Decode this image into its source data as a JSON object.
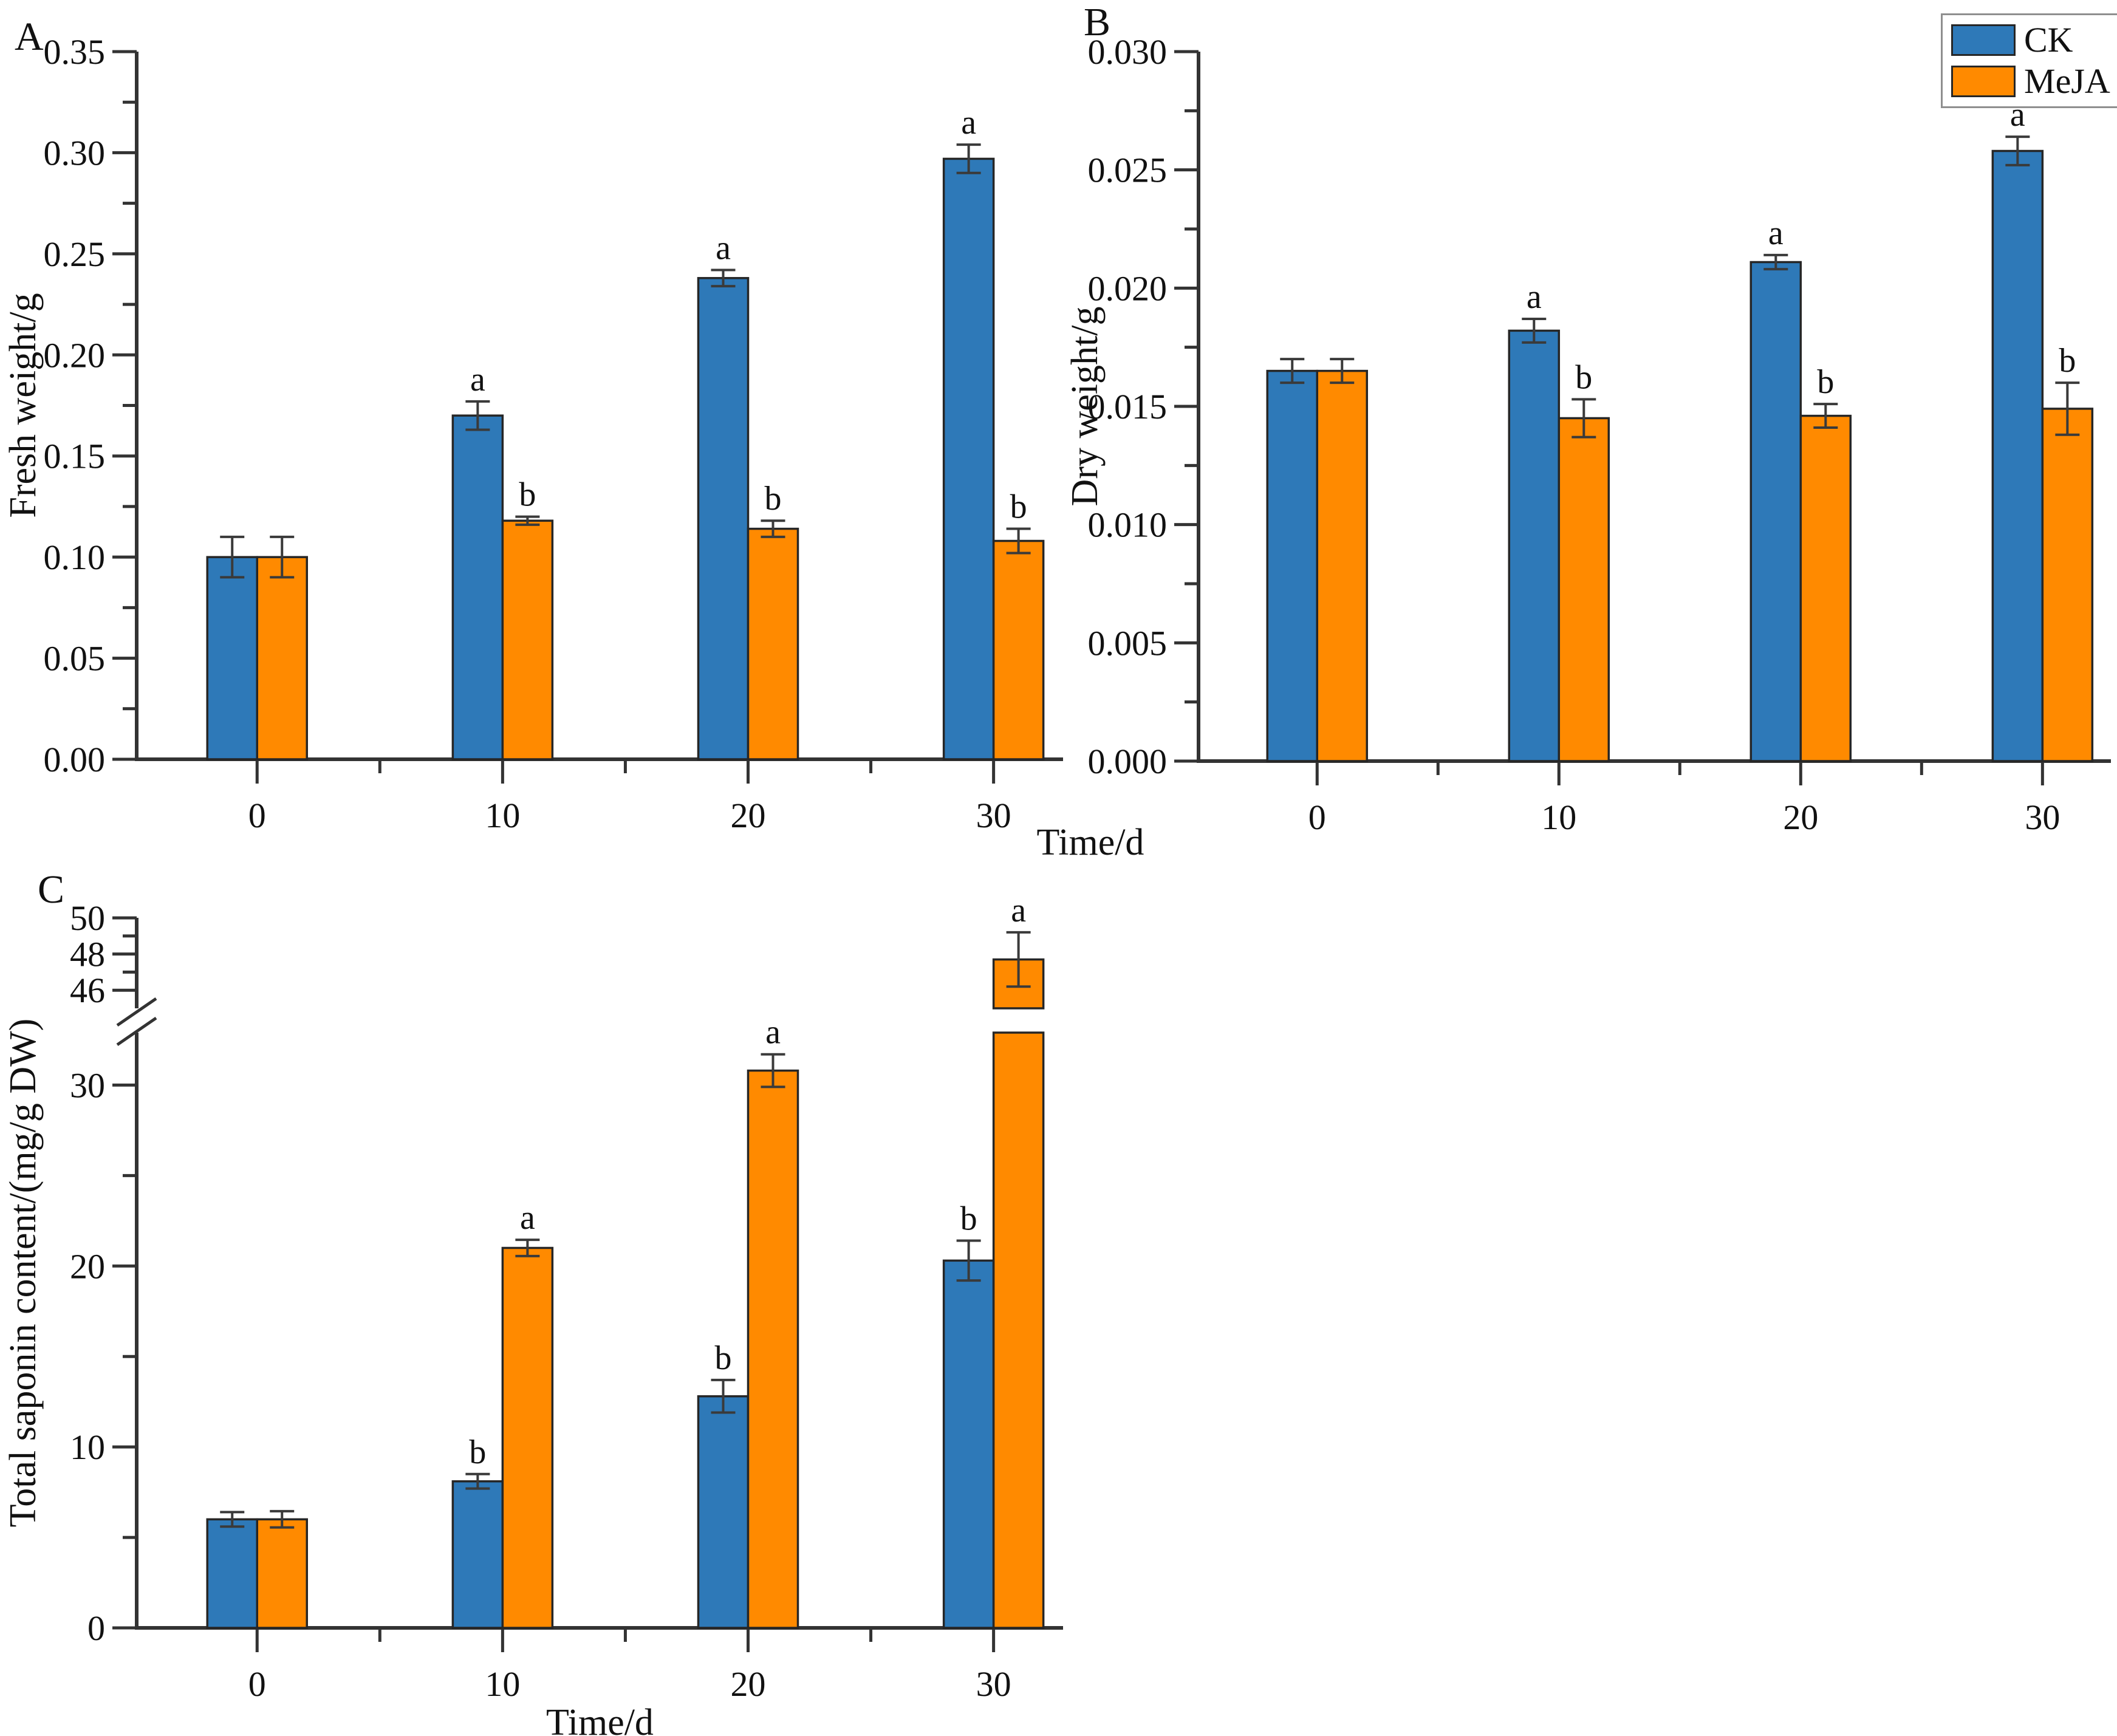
{
  "figure": {
    "panels": [
      {
        "label": "A"
      },
      {
        "label": "B"
      },
      {
        "label": "C"
      }
    ],
    "shared_xlabel": "Time/d"
  },
  "legend": {
    "position": "top-right",
    "items": [
      {
        "label": "CK",
        "color": "#2E79B8"
      },
      {
        "label": "MeJA",
        "color": "#FF8A00"
      }
    ]
  },
  "colors": {
    "ck_fill": "#2E79B8",
    "meja_fill": "#FF8A00",
    "bar_border": "#262626",
    "axis": "#333333",
    "error_bar": "#3a3a3a",
    "text": "#111111"
  },
  "chart_data": [
    {
      "id": "A",
      "type": "bar",
      "panel": "A",
      "title": "",
      "ylabel": "Fresh weight/g",
      "xlabel": "Time/d",
      "categories": [
        "0",
        "10",
        "20",
        "30"
      ],
      "ylim": [
        0,
        0.35
      ],
      "ytick_step": 0.05,
      "yminor_step": 0.025,
      "ydecimals": 2,
      "grid": false,
      "axis_break": null,
      "series": [
        {
          "name": "CK",
          "color": "#2E79B8",
          "values": [
            0.1,
            0.17,
            0.238,
            0.297
          ],
          "errors": [
            0.01,
            0.007,
            0.004,
            0.007
          ],
          "letters": [
            "",
            "a",
            "a",
            "a"
          ]
        },
        {
          "name": "MeJA",
          "color": "#FF8A00",
          "values": [
            0.1,
            0.118,
            0.114,
            0.108
          ],
          "errors": [
            0.01,
            0.002,
            0.004,
            0.006
          ],
          "letters": [
            "",
            "b",
            "b",
            "b"
          ]
        }
      ]
    },
    {
      "id": "B",
      "type": "bar",
      "panel": "B",
      "title": "",
      "ylabel": "Dry weight/g",
      "xlabel": "Time/d",
      "categories": [
        "0",
        "10",
        "20",
        "30"
      ],
      "ylim": [
        0,
        0.03
      ],
      "ytick_step": 0.005,
      "yminor_step": 0.0025,
      "ydecimals": 3,
      "grid": false,
      "axis_break": null,
      "series": [
        {
          "name": "CK",
          "color": "#2E79B8",
          "values": [
            0.0165,
            0.0182,
            0.0211,
            0.0258
          ],
          "errors": [
            0.0005,
            0.0005,
            0.0003,
            0.0006
          ],
          "letters": [
            "",
            "a",
            "a",
            "a"
          ]
        },
        {
          "name": "MeJA",
          "color": "#FF8A00",
          "values": [
            0.0165,
            0.0145,
            0.0146,
            0.0149
          ],
          "errors": [
            0.0005,
            0.0008,
            0.0005,
            0.0011
          ],
          "letters": [
            "",
            "b",
            "b",
            "b"
          ]
        }
      ]
    },
    {
      "id": "C",
      "type": "bar",
      "panel": "C",
      "title": "",
      "ylabel": "Total saponin content/(mg/g DW)",
      "xlabel": "Time/d",
      "categories": [
        "0",
        "10",
        "20",
        "30"
      ],
      "ylim": [
        0,
        50
      ],
      "ydecimals": 0,
      "grid": false,
      "axis_break": {
        "lower_max": 32.9,
        "upper_min": 45,
        "lower_ticks": [
          0,
          10,
          20,
          30
        ],
        "lower_minor_ticks": [
          5,
          15,
          25
        ],
        "upper_ticks": [
          46,
          48,
          50
        ],
        "upper_minor_ticks": [
          47,
          49
        ]
      },
      "series": [
        {
          "name": "CK",
          "color": "#2E79B8",
          "values": [
            6.0,
            8.1,
            12.8,
            20.3
          ],
          "errors": [
            0.4,
            0.4,
            0.9,
            1.1
          ],
          "letters": [
            "",
            "b",
            "b",
            "b"
          ]
        },
        {
          "name": "MeJA",
          "color": "#FF8A00",
          "values": [
            6.0,
            21.0,
            30.8,
            47.7
          ],
          "errors": [
            0.45,
            0.45,
            0.9,
            1.5
          ],
          "letters": [
            "",
            "a",
            "a",
            "a"
          ]
        }
      ]
    }
  ]
}
